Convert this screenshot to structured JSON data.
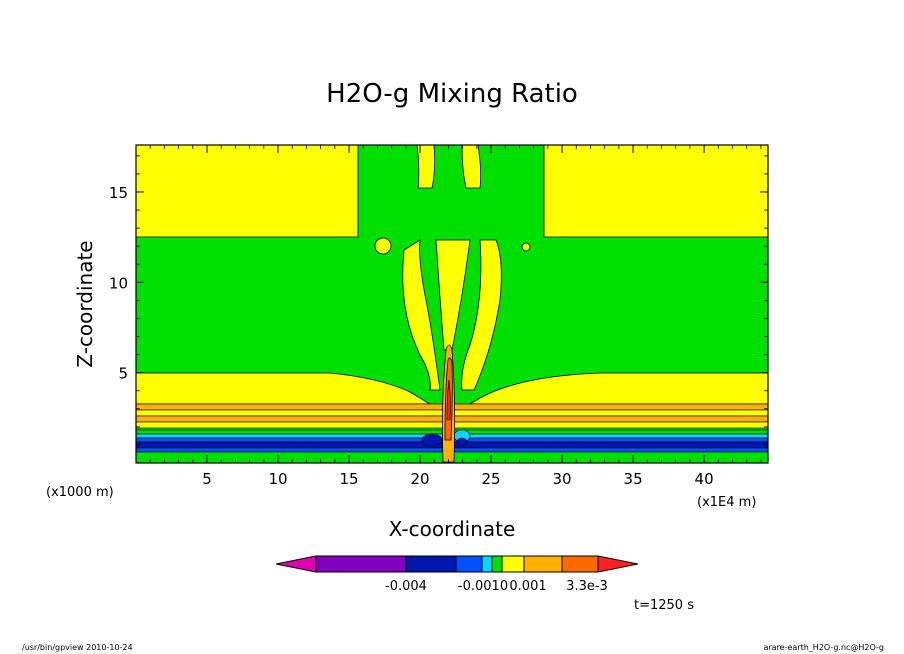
{
  "chart_data": {
    "type": "heatmap",
    "title": "H2O-g Mixing Ratio",
    "xlabel": "X-coordinate",
    "ylabel": "Z-coordinate",
    "x_unit_label": "(x1E4 m)",
    "y_unit_label": "(x1000 m)",
    "xlim": [
      0,
      44.5
    ],
    "ylim": [
      0,
      17.6
    ],
    "x_ticks": [
      5,
      10,
      15,
      20,
      25,
      30,
      35,
      40
    ],
    "y_ticks": [
      5,
      10,
      15
    ],
    "time_label": "t=1250 s",
    "colorbar": {
      "tick_labels": [
        "-0.004",
        "-0.0010",
        "0.001",
        "3.3e-3"
      ],
      "colors": [
        "#e000b0",
        "#8000c0",
        "#0018b0",
        "#0050ff",
        "#00d8ff",
        "#00e000",
        "#ffff00",
        "#ffb000",
        "#ff6a00",
        "#ff2020"
      ]
    },
    "regions_color_note": "yellow = positive anomaly, green = near zero, blue/cyan = negative near surface, orange/red updraft column near x=22"
  },
  "footer": {
    "left": "/usr/bin/gpview  2010-10-24",
    "right": "arare-earth_H2O-g.nc@H2O-g"
  }
}
